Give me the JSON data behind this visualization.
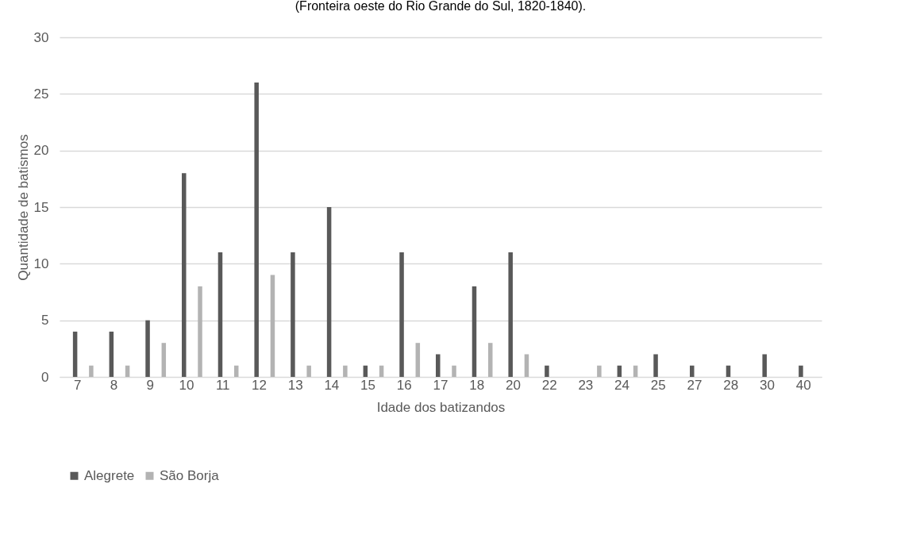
{
  "chart_data": {
    "type": "bar",
    "title": "(Fronteira oeste do Rio Grande do Sul, 1820-1840).",
    "xlabel": "Idade dos batizandos",
    "ylabel": "Quantidade de batismos",
    "categories": [
      "7",
      "8",
      "9",
      "10",
      "11",
      "12",
      "13",
      "14",
      "15",
      "16",
      "17",
      "18",
      "20",
      "22",
      "23",
      "24",
      "25",
      "27",
      "28",
      "30",
      "40"
    ],
    "series": [
      {
        "name": "Alegrete",
        "color": "#595959",
        "values": [
          4,
          4,
          5,
          18,
          11,
          26,
          11,
          15,
          1,
          11,
          2,
          8,
          11,
          1,
          0,
          1,
          2,
          1,
          1,
          2,
          1
        ]
      },
      {
        "name": "São Borja",
        "color": "#b3b3b3",
        "values": [
          1,
          1,
          3,
          8,
          1,
          9,
          1,
          1,
          1,
          3,
          1,
          3,
          2,
          0,
          1,
          1,
          0,
          0,
          0,
          0,
          0
        ]
      }
    ],
    "ylim": [
      0,
      30
    ],
    "yticks": [
      0,
      5,
      10,
      15,
      20,
      25,
      30
    ],
    "grid": "y",
    "legend": "bottom"
  }
}
